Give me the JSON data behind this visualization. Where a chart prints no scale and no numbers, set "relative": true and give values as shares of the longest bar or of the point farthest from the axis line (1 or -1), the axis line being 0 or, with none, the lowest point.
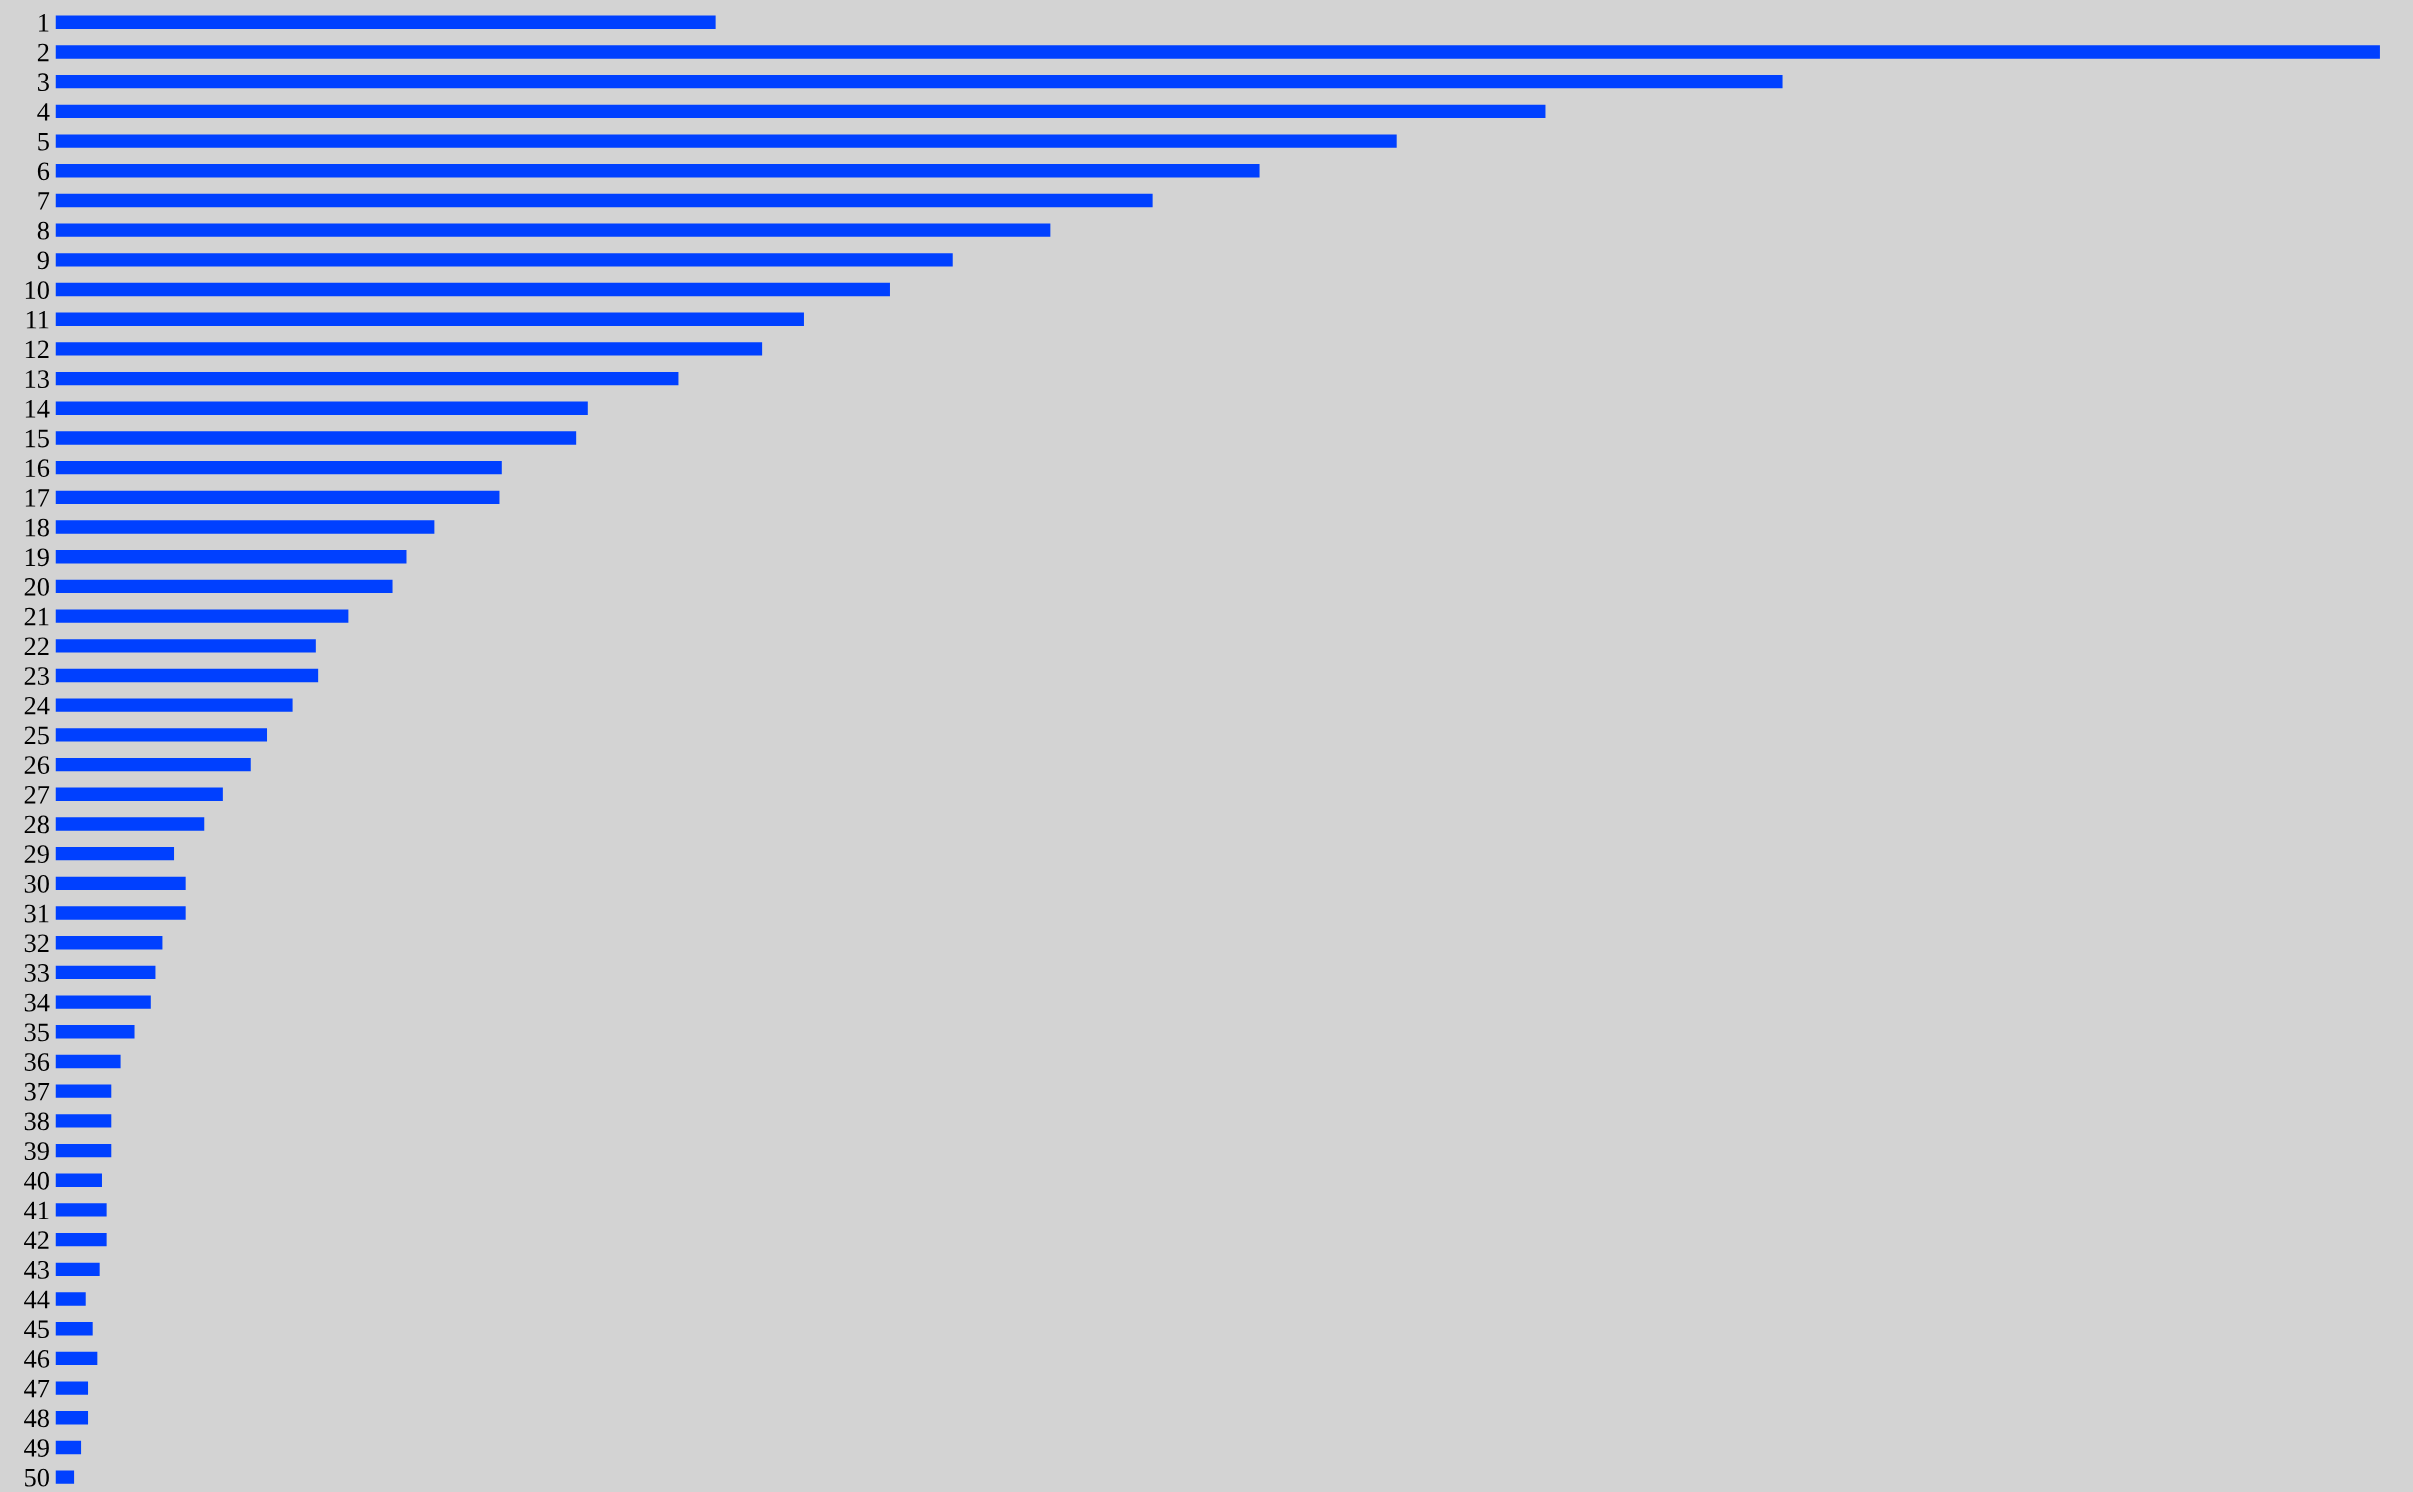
{
  "chart_data": {
    "type": "bar",
    "orientation": "horizontal",
    "relative": true,
    "categories": [
      "1",
      "2",
      "3",
      "4",
      "5",
      "6",
      "7",
      "8",
      "9",
      "10",
      "11",
      "12",
      "13",
      "14",
      "15",
      "16",
      "17",
      "18",
      "19",
      "20",
      "21",
      "22",
      "23",
      "24",
      "25",
      "26",
      "27",
      "28",
      "29",
      "30",
      "31",
      "32",
      "33",
      "34",
      "35",
      "36",
      "37",
      "38",
      "39",
      "40",
      "41",
      "42",
      "43",
      "44",
      "45",
      "46",
      "47",
      "48",
      "49",
      "50"
    ],
    "values": [
      0.284,
      1,
      0.743,
      0.641,
      0.577,
      0.518,
      0.472,
      0.428,
      0.386,
      0.359,
      0.322,
      0.304,
      0.268,
      0.229,
      0.224,
      0.192,
      0.191,
      0.163,
      0.151,
      0.145,
      0.126,
      0.112,
      0.113,
      0.102,
      0.091,
      0.084,
      0.072,
      0.064,
      0.051,
      0.056,
      0.056,
      0.046,
      0.043,
      0.041,
      0.034,
      0.028,
      0.024,
      0.024,
      0.024,
      0.02,
      0.022,
      0.022,
      0.019,
      0.013,
      0.016,
      0.018,
      0.014,
      0.014,
      0.011,
      0.008
    ],
    "color": "#0040ff",
    "grid": false,
    "legend": false
  }
}
